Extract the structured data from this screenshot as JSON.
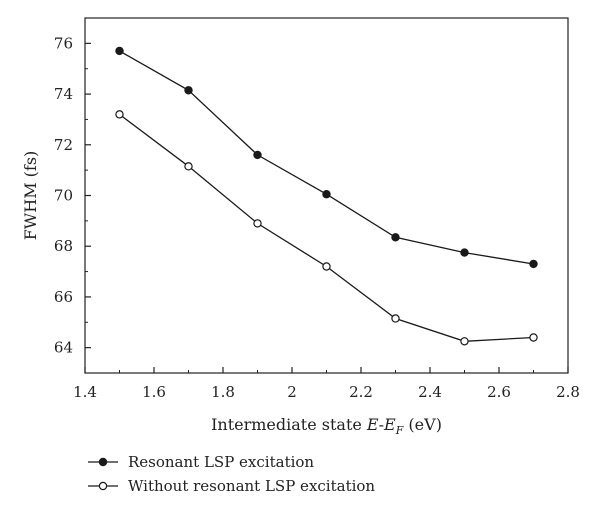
{
  "chart_data": {
    "type": "line",
    "title": "",
    "xlabel_main": "Intermediate state ",
    "xlabel_italic_e": "E",
    "xlabel_dash": "-",
    "xlabel_italic_ef": "E",
    "xlabel_sub_f": "F",
    "xlabel_unit": " (eV)",
    "ylabel": "FWHM (fs)",
    "xlim": [
      1.4,
      2.8
    ],
    "ylim": [
      63,
      77
    ],
    "x_ticks": [
      1.4,
      1.6,
      1.8,
      2,
      2.2,
      2.4,
      2.6,
      2.8
    ],
    "x_tick_labels": [
      "1.4",
      "1.6",
      "1.8",
      "2",
      "2.2",
      "2.4",
      "2.6",
      "2.8"
    ],
    "y_ticks": [
      64,
      66,
      68,
      70,
      72,
      74,
      76
    ],
    "y_tick_labels": [
      "64",
      "66",
      "68",
      "70",
      "72",
      "74",
      "76"
    ],
    "grid": false,
    "legend_placement": "bottom-left, below plot",
    "x": [
      1.5,
      1.7,
      1.9,
      2.1,
      2.3,
      2.5,
      2.7
    ],
    "series": [
      {
        "name": "Resonant LSP excitation",
        "marker": "filled-circle",
        "color": "#1a1a1a",
        "values": [
          75.7,
          74.15,
          71.6,
          70.05,
          68.35,
          67.75,
          67.3
        ]
      },
      {
        "name": "Without resonant LSP excitation",
        "marker": "open-circle",
        "color": "#1a1a1a",
        "values": [
          73.2,
          71.15,
          68.9,
          67.2,
          65.15,
          64.25,
          64.4
        ]
      }
    ]
  }
}
